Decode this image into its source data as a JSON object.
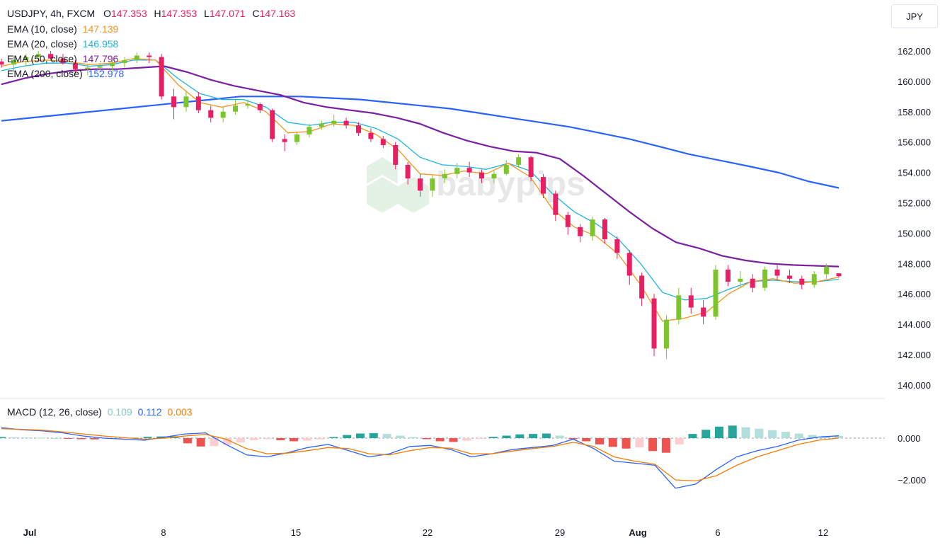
{
  "header": {
    "symbol_line": "USDJPY, 4h, FXCM",
    "ohlc": {
      "o_label": "O",
      "o": "147.353",
      "h_label": "H",
      "h": "147.353",
      "l_label": "L",
      "l": "147.071",
      "c_label": "C",
      "c": "147.163"
    },
    "ema10": {
      "label": "EMA (10, close)",
      "value": "147.139",
      "color": "#f7931a"
    },
    "ema20": {
      "label": "EMA (20, close)",
      "value": "146.958",
      "color": "#1cb5e0"
    },
    "ema50": {
      "label": "EMA (50, close)",
      "value": "147.796",
      "color": "#7b1fa2"
    },
    "ema200": {
      "label": "EMA (200, close)",
      "value": "152.978",
      "color": "#2962ff"
    },
    "currency_button": "JPY"
  },
  "macd_legend": {
    "label": "MACD (12, 26, close)",
    "hist": "0.109",
    "macd": "0.112",
    "signal": "0.003"
  },
  "colors": {
    "up": "#7cc52d",
    "down": "#e91e63",
    "value_magenta": "#e91e63",
    "macd_line": "#2962ff",
    "signal_line": "#f57c00",
    "hist_up": "#26a69a",
    "hist_down": "#ef5350"
  },
  "watermark": "babypips",
  "chart_data": [
    {
      "type": "candlestick",
      "title": "USDJPY, 4h, FXCM",
      "ylim": [
        139.5,
        163.5
      ],
      "y_ticks": [
        "140.000",
        "142.000",
        "144.000",
        "146.000",
        "148.000",
        "150.000",
        "152.000",
        "154.000",
        "156.000",
        "158.000",
        "160.000",
        "162.000"
      ],
      "x_ticks": [
        "Jul",
        "8",
        "15",
        "22",
        "29",
        "Aug",
        "6",
        "12"
      ],
      "ohlc": [
        [
          161.3,
          161.5,
          160.9,
          161.1
        ],
        [
          161.1,
          161.7,
          160.6,
          161.4
        ],
        [
          161.4,
          161.8,
          161.0,
          161.6
        ],
        [
          161.6,
          162.0,
          161.3,
          161.8
        ],
        [
          161.8,
          162.0,
          161.4,
          161.5
        ],
        [
          161.5,
          161.8,
          161.1,
          161.2
        ],
        [
          161.2,
          161.4,
          160.5,
          160.8
        ],
        [
          160.8,
          161.1,
          160.4,
          160.9
        ],
        [
          160.9,
          161.2,
          160.6,
          161.0
        ],
        [
          161.0,
          161.4,
          160.7,
          161.2
        ],
        [
          161.2,
          161.6,
          160.9,
          161.4
        ],
        [
          161.4,
          161.9,
          161.2,
          161.7
        ],
        [
          161.7,
          161.9,
          161.2,
          161.6
        ],
        [
          161.6,
          161.8,
          158.8,
          159.0
        ],
        [
          159.0,
          159.5,
          157.5,
          158.3
        ],
        [
          158.3,
          159.4,
          158.0,
          159.0
        ],
        [
          159.0,
          159.3,
          157.9,
          158.1
        ],
        [
          158.1,
          158.4,
          157.3,
          157.6
        ],
        [
          157.6,
          158.3,
          157.3,
          158.0
        ],
        [
          158.0,
          158.8,
          157.8,
          158.4
        ],
        [
          158.4,
          158.8,
          158.2,
          158.5
        ],
        [
          158.5,
          158.6,
          157.9,
          158.1
        ],
        [
          158.1,
          158.2,
          156.0,
          156.2
        ],
        [
          156.2,
          156.5,
          155.4,
          156.0
        ],
        [
          156.0,
          156.7,
          155.8,
          156.5
        ],
        [
          156.5,
          157.2,
          156.3,
          157.0
        ],
        [
          157.0,
          157.4,
          156.8,
          157.2
        ],
        [
          157.2,
          157.8,
          157.0,
          157.4
        ],
        [
          157.4,
          157.6,
          156.9,
          157.1
        ],
        [
          157.1,
          157.3,
          156.4,
          156.6
        ],
        [
          156.6,
          156.9,
          156.0,
          156.2
        ],
        [
          156.2,
          156.4,
          155.6,
          155.8
        ],
        [
          155.8,
          156.0,
          154.2,
          154.5
        ],
        [
          154.5,
          154.7,
          153.2,
          153.6
        ],
        [
          153.6,
          153.9,
          152.4,
          152.8
        ],
        [
          152.8,
          153.8,
          152.4,
          153.6
        ],
        [
          153.6,
          154.2,
          153.3,
          153.9
        ],
        [
          153.9,
          154.6,
          153.6,
          154.3
        ],
        [
          154.3,
          154.7,
          153.7,
          154.0
        ],
        [
          154.0,
          154.2,
          153.3,
          153.6
        ],
        [
          153.6,
          154.1,
          153.3,
          153.9
        ],
        [
          153.9,
          154.8,
          153.8,
          154.5
        ],
        [
          154.5,
          155.2,
          154.3,
          155.0
        ],
        [
          155.0,
          155.1,
          153.4,
          153.7
        ],
        [
          153.7,
          153.9,
          152.3,
          152.6
        ],
        [
          152.6,
          152.8,
          150.8,
          151.2
        ],
        [
          151.2,
          151.4,
          149.9,
          150.4
        ],
        [
          150.4,
          150.6,
          149.4,
          149.8
        ],
        [
          149.8,
          151.1,
          149.5,
          150.9
        ],
        [
          150.9,
          151.0,
          149.3,
          149.6
        ],
        [
          149.6,
          149.8,
          148.3,
          148.7
        ],
        [
          148.7,
          148.9,
          146.6,
          147.2
        ],
        [
          147.2,
          147.4,
          145.2,
          145.7
        ],
        [
          145.7,
          146.0,
          141.9,
          142.4
        ],
        [
          142.4,
          144.6,
          141.7,
          144.3
        ],
        [
          144.3,
          146.4,
          144.0,
          145.9
        ],
        [
          145.9,
          146.4,
          144.7,
          145.1
        ],
        [
          145.1,
          145.6,
          144.0,
          144.5
        ],
        [
          144.5,
          147.9,
          144.3,
          147.6
        ],
        [
          147.6,
          147.9,
          146.5,
          146.8
        ],
        [
          146.8,
          147.5,
          146.4,
          147.0
        ],
        [
          147.0,
          147.3,
          146.1,
          146.4
        ],
        [
          146.4,
          147.8,
          146.2,
          147.6
        ],
        [
          147.6,
          147.9,
          146.9,
          147.2
        ],
        [
          147.2,
          147.6,
          146.7,
          147.0
        ],
        [
          147.0,
          147.2,
          146.3,
          146.6
        ],
        [
          146.6,
          147.5,
          146.4,
          147.3
        ],
        [
          147.3,
          148.0,
          147.0,
          147.8
        ],
        [
          147.353,
          147.353,
          147.071,
          147.163
        ]
      ],
      "series": [
        {
          "name": "EMA (10, close)",
          "values": [
            161.0,
            161.3,
            161.4,
            161.3,
            161.1,
            161.2,
            161.5,
            161.4,
            159.8,
            158.6,
            158.3,
            158.6,
            158.0,
            156.6,
            156.7,
            157.2,
            157.1,
            156.5,
            155.5,
            153.9,
            153.8,
            154.1,
            153.9,
            154.6,
            153.7,
            151.6,
            150.4,
            149.8,
            148.6,
            146.6,
            144.2,
            144.4,
            144.8,
            146.0,
            146.8,
            147.0,
            146.7,
            146.8,
            147.1
          ]
        },
        {
          "name": "EMA (20, close)",
          "values": [
            160.7,
            161.0,
            161.2,
            161.2,
            161.0,
            161.1,
            161.4,
            161.4,
            160.2,
            159.2,
            158.8,
            158.8,
            158.3,
            157.3,
            157.1,
            157.3,
            157.3,
            156.9,
            156.2,
            155.0,
            154.5,
            154.4,
            154.2,
            154.6,
            154.1,
            152.6,
            151.4,
            150.6,
            149.6,
            148.0,
            146.1,
            145.6,
            145.7,
            146.3,
            146.8,
            146.9,
            146.8,
            146.8,
            146.96
          ]
        },
        {
          "name": "EMA (50, close)",
          "values": [
            159.8,
            160.2,
            160.5,
            160.7,
            160.8,
            160.8,
            160.9,
            161.0,
            160.6,
            160.1,
            159.7,
            159.4,
            159.1,
            158.6,
            158.3,
            158.1,
            157.9,
            157.6,
            157.2,
            156.6,
            156.1,
            155.7,
            155.4,
            155.3,
            154.9,
            153.8,
            152.6,
            151.4,
            150.3,
            149.4,
            149.0,
            148.5,
            148.2,
            148.0,
            147.9,
            147.85,
            147.8
          ]
        },
        {
          "name": "EMA (200, close)",
          "values": [
            157.4,
            157.6,
            157.8,
            158.0,
            158.2,
            158.4,
            158.6,
            158.8,
            159.0,
            159.0,
            159.0,
            158.9,
            158.8,
            158.6,
            158.4,
            158.2,
            157.9,
            157.6,
            157.3,
            157.0,
            156.6,
            156.2,
            155.7,
            155.2,
            154.8,
            154.4,
            153.98,
            153.4,
            152.978
          ]
        }
      ]
    },
    {
      "type": "macd",
      "title": "MACD (12, 26, close)",
      "ylim": [
        -3.5,
        1.0
      ],
      "y_ticks": [
        "0.000",
        "−2.000"
      ],
      "histogram": [
        0.05,
        0.04,
        0.03,
        0.02,
        0.0,
        -0.03,
        -0.05,
        -0.06,
        -0.04,
        -0.02,
        0.02,
        0.06,
        0.08,
        0.09,
        -0.25,
        -0.4,
        -0.38,
        -0.32,
        -0.2,
        -0.1,
        -0.05,
        -0.1,
        -0.15,
        -0.12,
        -0.06,
        0.05,
        0.15,
        0.22,
        0.24,
        0.2,
        0.12,
        0.05,
        -0.05,
        -0.15,
        -0.18,
        -0.12,
        -0.04,
        0.06,
        0.12,
        0.18,
        0.2,
        0.22,
        0.12,
        -0.05,
        -0.15,
        -0.3,
        -0.42,
        -0.5,
        -0.45,
        -0.62,
        -0.7,
        -0.3,
        0.2,
        0.4,
        0.55,
        0.6,
        0.52,
        0.45,
        0.38,
        0.3,
        0.22,
        0.15,
        0.11,
        0.109
      ],
      "series": [
        {
          "name": "MACD",
          "values": [
            0.5,
            0.4,
            0.35,
            0.25,
            0.1,
            0.0,
            -0.05,
            -0.1,
            0.05,
            0.2,
            0.25,
            -0.3,
            -0.8,
            -0.9,
            -0.7,
            -0.45,
            -0.3,
            -0.6,
            -0.9,
            -0.75,
            -0.4,
            -0.35,
            -0.55,
            -0.9,
            -0.75,
            -0.55,
            -0.45,
            -0.35,
            -0.05,
            -0.5,
            -1.1,
            -1.2,
            -1.3,
            -2.4,
            -2.2,
            -1.5,
            -0.9,
            -0.6,
            -0.4,
            -0.1,
            0.05,
            0.112
          ]
        },
        {
          "name": "Signal",
          "values": [
            0.45,
            0.42,
            0.38,
            0.3,
            0.2,
            0.1,
            0.02,
            -0.05,
            0.0,
            0.1,
            0.18,
            -0.05,
            -0.5,
            -0.75,
            -0.72,
            -0.6,
            -0.45,
            -0.5,
            -0.75,
            -0.8,
            -0.6,
            -0.45,
            -0.48,
            -0.75,
            -0.75,
            -0.62,
            -0.5,
            -0.4,
            -0.2,
            -0.4,
            -0.9,
            -1.1,
            -1.25,
            -2.0,
            -2.05,
            -1.8,
            -1.3,
            -0.9,
            -0.6,
            -0.3,
            -0.1,
            0.003
          ]
        }
      ]
    }
  ]
}
